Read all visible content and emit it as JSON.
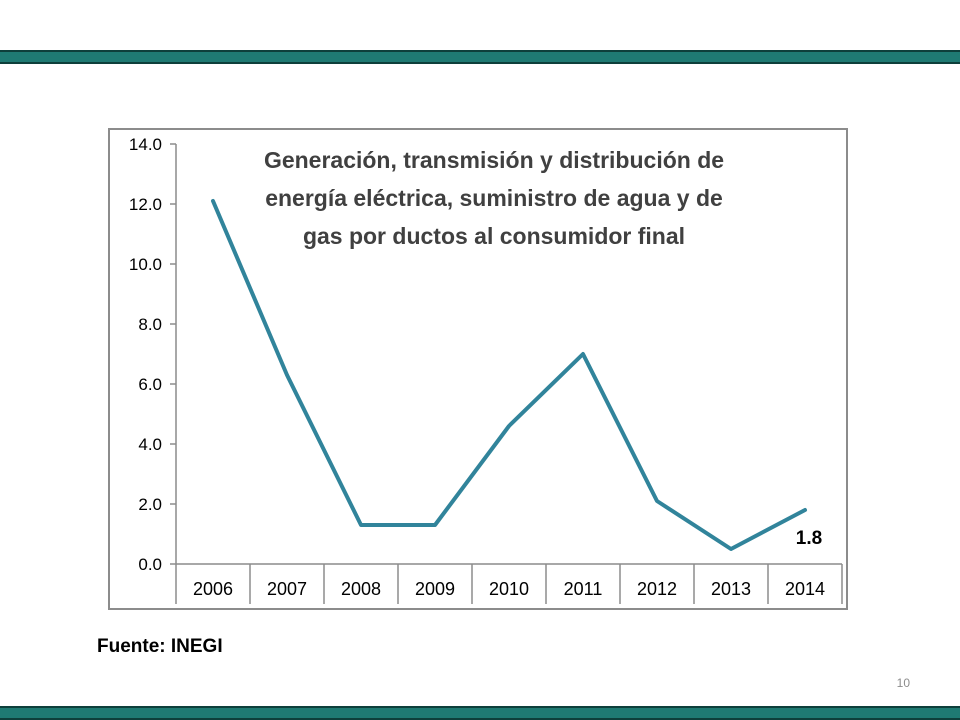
{
  "slide": {
    "source_label": "Fuente: INEGI",
    "page_number": "10",
    "band_color": "#1f7a73"
  },
  "chart_data": {
    "type": "line",
    "title_lines": [
      "Generación, transmisión y distribución de",
      "energía eléctrica, suministro de agua y de",
      "gas por ductos al consumidor final"
    ],
    "xlabel": "",
    "ylabel": "",
    "categories": [
      "2006",
      "2007",
      "2008",
      "2009",
      "2010",
      "2011",
      "2012",
      "2013",
      "2014"
    ],
    "series": [
      {
        "values": [
          12.1,
          6.3,
          1.3,
          1.3,
          4.6,
          7.0,
          2.1,
          0.5,
          1.8
        ],
        "color": "#31849b"
      }
    ],
    "ylim": [
      0,
      14
    ],
    "yticks": [
      "0.0",
      "2.0",
      "4.0",
      "6.0",
      "8.0",
      "10.0",
      "12.0",
      "14.0"
    ],
    "data_labels": [
      {
        "category": "2014",
        "text": "1.8"
      }
    ],
    "grid": false,
    "legend": "none"
  }
}
